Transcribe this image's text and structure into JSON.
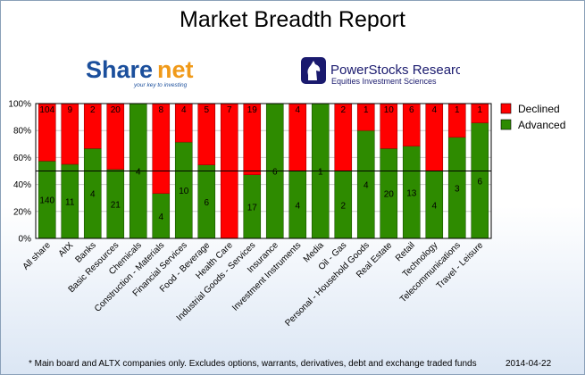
{
  "header": {
    "title": "Market Breadth Report"
  },
  "logos": {
    "sharenet": {
      "name": "Sharenet",
      "tagline": "your key to investing"
    },
    "powerstocks": {
      "name": "PowerStocks  Research",
      "tagline": "Equities Investment Sciences"
    }
  },
  "footer": {
    "note": "* Main board and ALTX companies only. Excludes options, warrants, derivatives, debt and exchange traded funds",
    "date": "2014-04-22"
  },
  "colors": {
    "declined": "#ff0000",
    "advanced": "#2e8b00",
    "grid": "#000000"
  },
  "chart_data": {
    "type": "bar",
    "stacked": "percent",
    "categories": [
      "All share",
      "AltX",
      "Banks",
      "Basic Resources",
      "Chemicals",
      "Construction - Materials",
      "Financial Services",
      "Food - Beverage",
      "Health Care",
      "Industrial Goods - Services",
      "Insurance",
      "Investment Instruments",
      "Media",
      "Oil - Gas",
      "Personal - Household Goods",
      "Real Estate",
      "Retail",
      "Technology",
      "Telecommunications",
      "Travel - Leisure"
    ],
    "series": [
      {
        "name": "Declined",
        "values": [
          104,
          9,
          2,
          20,
          0,
          8,
          4,
          5,
          7,
          19,
          0,
          4,
          0,
          2,
          1,
          10,
          6,
          4,
          1,
          1
        ]
      },
      {
        "name": "Advanced",
        "values": [
          140,
          11,
          4,
          21,
          4,
          4,
          10,
          6,
          0,
          17,
          6,
          4,
          1,
          2,
          4,
          20,
          13,
          4,
          3,
          6
        ]
      }
    ],
    "y_ticks": [
      "0%",
      "20%",
      "40%",
      "60%",
      "80%",
      "100%"
    ],
    "ylim": [
      0,
      100
    ],
    "legend_position": "right",
    "reference_line": 50
  }
}
